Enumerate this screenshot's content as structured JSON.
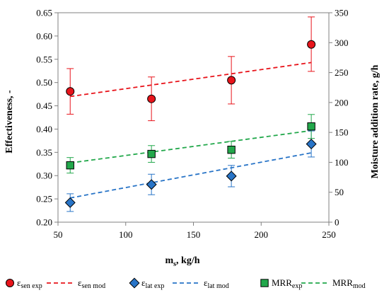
{
  "chart_data": {
    "type": "scatter",
    "x_axis": {
      "label_main": "m",
      "label_sub": "s",
      "label_rest": ", kg/h",
      "range": [
        50,
        250
      ],
      "ticks": [
        "50",
        "100",
        "150",
        "200",
        "250"
      ]
    },
    "y_left": {
      "label": "Effectiveness, -",
      "range": [
        0.2,
        0.65
      ],
      "ticks": [
        "0.20",
        "0.25",
        "0.30",
        "0.35",
        "0.40",
        "0.45",
        "0.50",
        "0.55",
        "0.60",
        "0.65"
      ]
    },
    "y_right": {
      "label": "Moisture addition rate, g/h",
      "range": [
        0,
        350
      ],
      "ticks": [
        "0",
        "50",
        "100",
        "150",
        "200",
        "250",
        "300",
        "350"
      ]
    },
    "x": [
      59,
      119,
      178,
      237
    ],
    "series": [
      {
        "name": "ε",
        "name_sub": "sen exp",
        "kind": "points",
        "axis": "left",
        "marker": "circle",
        "color": "#e8141b",
        "values": [
          0.481,
          0.465,
          0.505,
          0.582
        ],
        "err_low": [
          0.432,
          0.418,
          0.454,
          0.524
        ],
        "err_high": [
          0.53,
          0.512,
          0.556,
          0.641
        ]
      },
      {
        "name": "ε",
        "name_sub": "sen mod",
        "kind": "line",
        "axis": "left",
        "color": "#e8141b",
        "line_x": [
          59,
          237
        ],
        "line_y": [
          0.47,
          0.543
        ]
      },
      {
        "name": "ε",
        "name_sub": "lat exp",
        "kind": "points",
        "axis": "left",
        "marker": "diamond",
        "color": "#2874c7",
        "values": [
          0.242,
          0.281,
          0.299,
          0.368
        ],
        "err_low": [
          0.223,
          0.259,
          0.276,
          0.34
        ],
        "err_high": [
          0.261,
          0.303,
          0.322,
          0.396
        ]
      },
      {
        "name": "ε",
        "name_sub": "lat mod",
        "kind": "line",
        "axis": "left",
        "color": "#2874c7",
        "line_x": [
          59,
          237
        ],
        "line_y": [
          0.252,
          0.349
        ]
      },
      {
        "name": "MRR",
        "name_sub": "exp",
        "kind": "points",
        "axis": "right",
        "marker": "square",
        "color": "#22a84b",
        "values": [
          95,
          114,
          121,
          160
        ],
        "err_low": [
          82,
          100,
          107,
          140
        ],
        "err_high": [
          108,
          128,
          135,
          180
        ]
      },
      {
        "name": "MRR",
        "name_sub": "mod",
        "kind": "line",
        "axis": "right",
        "color": "#22a84b",
        "line_x": [
          59,
          237
        ],
        "line_y": [
          99,
          153
        ]
      }
    ],
    "grid": false,
    "legend_position": "bottom"
  }
}
